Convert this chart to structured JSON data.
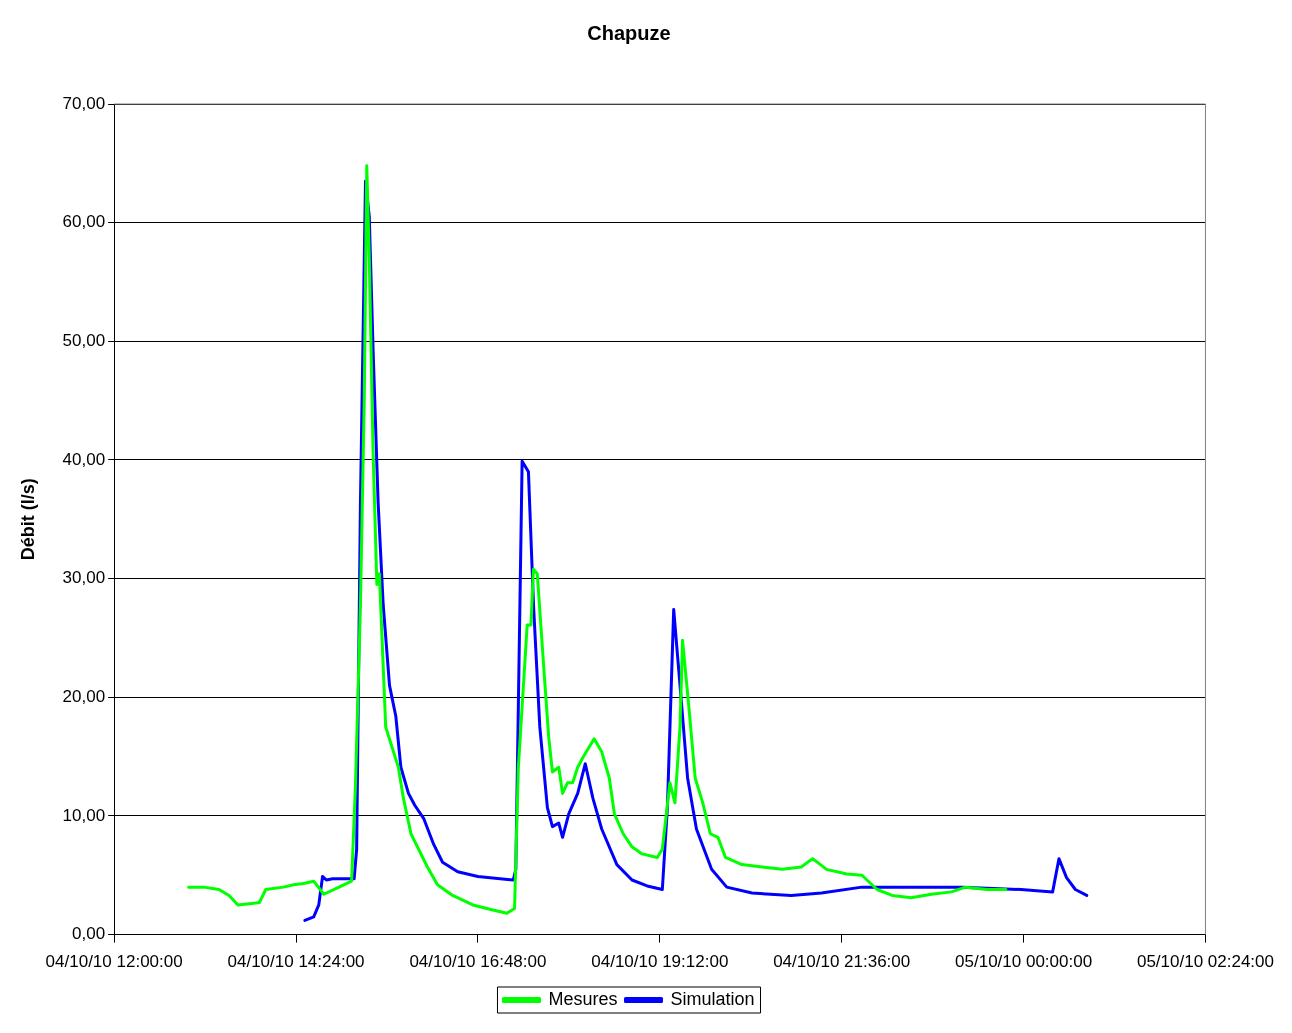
{
  "chart_data": {
    "type": "line",
    "title": "Chapuze",
    "ylabel": "Débit (l/s)",
    "xlim": [
      "--10-04T12:00",
      "--10-05T02:24"
    ],
    "xticks": [
      {
        "value": "--10-04T12:00",
        "label": "04/10/10 12:00:00"
      },
      {
        "value": "--10-04T14:24",
        "label": "04/10/10 14:24:00"
      },
      {
        "value": "--10-04T16:48",
        "label": "04/10/10 16:48:00"
      },
      {
        "value": "--10-04T19:12",
        "label": "04/10/10 19:12:00"
      },
      {
        "value": "--10-04T21:36",
        "label": "04/10/10 21:36:00"
      },
      {
        "value": "--10-05T00:00",
        "label": "05/10/10 00:00:00"
      },
      {
        "value": "--10-05T02:24",
        "label": "05/10/10 02:24:00"
      }
    ],
    "ylim": [
      0,
      70
    ],
    "yticks": [
      {
        "value": 0,
        "label": "0,00"
      },
      {
        "value": 10,
        "label": "10,00"
      },
      {
        "value": 20,
        "label": "20,00"
      },
      {
        "value": 30,
        "label": "30,00"
      },
      {
        "value": 40,
        "label": "40,00"
      },
      {
        "value": 50,
        "label": "50,00"
      },
      {
        "value": 60,
        "label": "60,00"
      },
      {
        "value": 70,
        "label": "70,00"
      }
    ],
    "grid": "y",
    "legend": "bottom",
    "marker": "none",
    "line_style": "solid",
    "series": [
      {
        "name": "Mesures",
        "color": "#00ff00",
        "x": [
          "--10-04T12:59",
          "--10-04T13:11",
          "--10-04T13:23",
          "--10-04T13:31",
          "--10-04T13:38",
          "--10-04T13:55",
          "--10-04T14:00",
          "--10-04T14:14",
          "--10-04T14:22",
          "--10-04T14:30",
          "--10-04T14:38",
          "--10-04T14:46",
          "--10-04T14:58",
          "--10-04T15:08",
          "--10-04T15:11",
          "--10-04T15:15",
          "--10-04T15:18",
          "--10-04T15:20",
          "--10-04T15:22",
          "--10-04T15:25",
          "--10-04T15:28",
          "--10-04T15:30",
          "--10-04T15:31",
          "--10-04T15:35",
          "--10-04T15:40",
          "--10-04T15:45",
          "--10-04T15:49",
          "--10-04T15:55",
          "--10-04T16:01",
          "--10-04T16:08",
          "--10-04T16:16",
          "--10-04T16:28",
          "--10-04T16:44",
          "--10-04T16:59",
          "--10-04T17:11",
          "--10-04T17:17",
          "--10-04T17:20",
          "--10-04T17:23",
          "--10-04T17:27",
          "--10-04T17:30",
          "--10-04T17:32",
          "--10-04T17:35",
          "--10-04T17:40",
          "--10-04T17:44",
          "--10-04T17:47",
          "--10-04T17:52",
          "--10-04T17:55",
          "--10-04T17:59",
          "--10-04T18:03",
          "--10-04T18:07",
          "--10-04T18:11",
          "--10-04T18:20",
          "--10-04T18:26",
          "--10-04T18:32",
          "--10-04T18:36",
          "--10-04T18:43",
          "--10-04T18:50",
          "--10-04T18:58",
          "--10-04T19:10",
          "--10-04T19:14",
          "--10-04T19:20",
          "--10-04T19:24",
          "--10-04T19:28",
          "--10-04T19:30",
          "--10-04T19:35",
          "--10-04T19:40",
          "--10-04T19:46",
          "--10-04T19:52",
          "--10-04T19:58",
          "--10-04T20:04",
          "--10-04T20:17",
          "--10-04T20:33",
          "--10-04T20:49",
          "--10-04T21:04",
          "--10-04T21:13",
          "--10-04T21:24",
          "--10-04T21:40",
          "--10-04T21:52",
          "--10-04T22:04",
          "--10-04T22:16",
          "--10-04T22:31",
          "--10-04T22:47",
          "--10-04T23:03",
          "--10-04T23:14",
          "--10-04T23:31",
          "--10-04T23:46"
        ],
        "values": [
          4.0,
          4.0,
          3.8,
          3.3,
          2.5,
          2.7,
          3.8,
          4.0,
          4.2,
          4.3,
          4.5,
          3.4,
          4.0,
          4.5,
          12.4,
          27.8,
          45.0,
          64.8,
          57.0,
          40.7,
          29.5,
          30.4,
          27.8,
          17.5,
          15.8,
          14.1,
          11.5,
          8.5,
          7.2,
          5.7,
          4.2,
          3.3,
          2.5,
          2.1,
          1.8,
          2.2,
          14.1,
          19.2,
          26.1,
          26.1,
          30.8,
          30.4,
          22.7,
          16.7,
          13.7,
          14.1,
          11.9,
          12.8,
          12.8,
          14.1,
          14.9,
          16.5,
          15.4,
          13.2,
          10.2,
          8.5,
          7.4,
          6.8,
          6.5,
          7.2,
          12.8,
          11.1,
          17.5,
          24.8,
          19.2,
          13.2,
          11.1,
          8.5,
          8.2,
          6.5,
          5.9,
          5.7,
          5.5,
          5.7,
          6.4,
          5.5,
          5.1,
          5.0,
          3.8,
          3.3,
          3.1,
          3.4,
          3.6,
          4.0,
          3.8,
          3.8
        ]
      },
      {
        "name": "Simulation",
        "color": "#0000ff",
        "x": [
          "--10-04T14:31",
          "--10-04T14:38",
          "--10-04T14:42",
          "--10-04T14:45",
          "--10-04T14:48",
          "--10-04T14:53",
          "--10-04T15:10",
          "--10-04T15:12",
          "--10-04T15:15",
          "--10-04T15:19",
          "--10-04T15:22",
          "--10-04T15:25",
          "--10-04T15:29",
          "--10-04T15:33",
          "--10-04T15:38",
          "--10-04T15:43",
          "--10-04T15:47",
          "--10-04T15:53",
          "--10-04T15:58",
          "--10-04T16:05",
          "--10-04T16:13",
          "--10-04T16:20",
          "--10-04T16:32",
          "--10-04T16:48",
          "--10-04T17:16",
          "--10-04T17:18",
          "--10-04T17:20",
          "--10-04T17:23",
          "--10-04T17:28",
          "--10-04T17:32",
          "--10-04T17:37",
          "--10-04T17:43",
          "--10-04T17:47",
          "--10-04T17:52",
          "--10-04T17:55",
          "--10-04T18:00",
          "--10-04T18:07",
          "--10-04T18:13",
          "--10-04T18:19",
          "--10-04T18:26",
          "--10-04T18:38",
          "--10-04T18:50",
          "--10-04T19:02",
          "--10-04T19:14",
          "--10-04T19:18",
          "--10-04T19:23",
          "--10-04T19:28",
          "--10-04T19:34",
          "--10-04T19:41",
          "--10-04T19:53",
          "--10-04T20:05",
          "--10-04T20:25",
          "--10-04T20:56",
          "--10-04T21:20",
          "--10-04T21:52",
          "--10-04T22:23",
          "--10-04T23:11",
          "--10-04T23:58",
          "--10-05T00:23",
          "--10-05T00:28",
          "--10-05T00:34",
          "--10-05T00:41",
          "--10-05T00:50"
        ],
        "values": [
          1.2,
          1.5,
          2.5,
          4.9,
          4.6,
          4.7,
          4.7,
          7.2,
          36.4,
          63.5,
          60.5,
          49.3,
          36.4,
          27.8,
          21.0,
          18.4,
          14.1,
          11.9,
          10.9,
          9.8,
          7.6,
          6.1,
          5.3,
          4.9,
          4.6,
          5.5,
          19.2,
          39.9,
          39.0,
          27.8,
          17.5,
          10.7,
          9.1,
          9.4,
          8.2,
          10.2,
          11.9,
          14.4,
          11.5,
          8.9,
          5.9,
          4.6,
          4.1,
          3.8,
          10.7,
          27.4,
          21.0,
          13.2,
          8.9,
          5.5,
          4.0,
          3.5,
          3.3,
          3.5,
          4.0,
          4.0,
          4.0,
          3.8,
          3.6,
          6.4,
          4.8,
          3.8,
          3.3
        ]
      }
    ]
  }
}
